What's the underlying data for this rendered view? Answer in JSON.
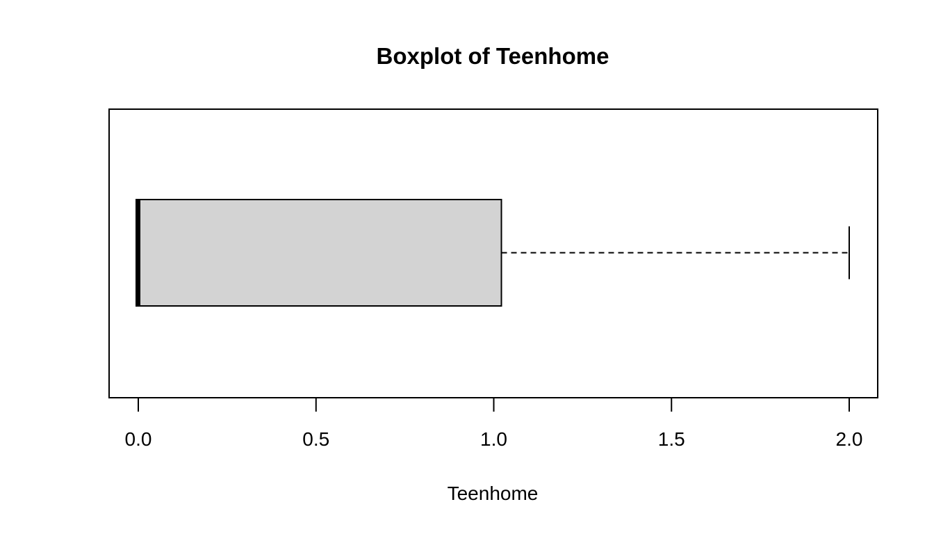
{
  "chart_data": {
    "type": "boxplot",
    "orientation": "horizontal",
    "title": "Boxplot of Teenhome",
    "xlabel": "Teenhome",
    "ylabel": "",
    "xlim": [
      -0.08,
      2.08
    ],
    "x_ticks": [
      0.0,
      0.5,
      1.0,
      1.5,
      2.0
    ],
    "x_tick_labels": [
      "0.0",
      "0.5",
      "1.0",
      "1.5",
      "2.0"
    ],
    "grid": false,
    "series": [
      {
        "min": 0,
        "q1": 0,
        "median": 0,
        "q3": 1,
        "max": 2,
        "outliers": []
      }
    ],
    "colors": {
      "box_fill": "#d3d3d3",
      "stroke": "#000000"
    }
  }
}
